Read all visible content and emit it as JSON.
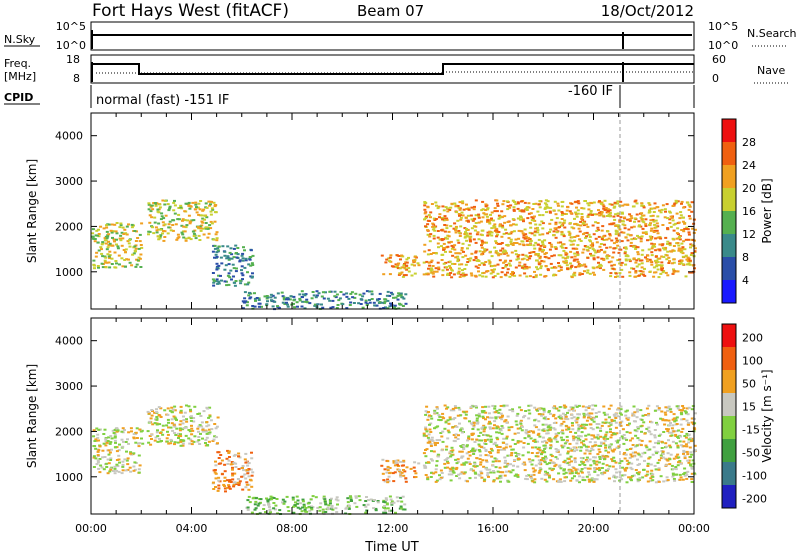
{
  "header": {
    "title": "Fort Hays West (fitACF)",
    "beam": "Beam 07",
    "date": "18/Oct/2012"
  },
  "meta_panels": {
    "nsky_label": "N.Sky",
    "nsearch_label": "N.Search",
    "freq_label": "Freq.",
    "freq_unit": "[MHz]",
    "nave_label": "Nave",
    "cpid_label": "CPID",
    "cpid_text_1": "normal (fast) -151 IF",
    "cpid_text_2": "-160 IF",
    "noise_ticks_left": [
      "10^5",
      "10^0"
    ],
    "noise_ticks_right": [
      "10^5",
      "10^0"
    ],
    "freq_ticks": [
      "18",
      "8"
    ],
    "nave_ticks": [
      "60",
      "0"
    ]
  },
  "chart_data": [
    {
      "type": "heatmap",
      "name": "power",
      "ylabel": "Slant Range [km]",
      "ylim": [
        180,
        4500
      ],
      "xlim": [
        0,
        24
      ],
      "yticks": [
        "1000",
        "2000",
        "3000",
        "4000"
      ],
      "colorbar_label": "Power [dB]",
      "colorbar_ticks": [
        "4",
        "8",
        "12",
        "16",
        "20",
        "24",
        "28"
      ],
      "colors": [
        "#1a1aff",
        "#2a4ea8",
        "#3a8a8a",
        "#55b050",
        "#c8d030",
        "#f0a020",
        "#f06010",
        "#ee1010"
      ],
      "regions": [
        {
          "t0": 0.0,
          "t1": 2.0,
          "r0": 1100,
          "r1": 2100,
          "level": 4
        },
        {
          "t0": 2.2,
          "t1": 5.0,
          "r0": 1700,
          "r1": 2600,
          "level": 4
        },
        {
          "t0": 4.8,
          "t1": 6.4,
          "r0": 700,
          "r1": 1600,
          "level": 2
        },
        {
          "t0": 6.0,
          "t1": 12.5,
          "r0": 200,
          "r1": 600,
          "level": 2
        },
        {
          "t0": 11.5,
          "t1": 13.0,
          "r0": 900,
          "r1": 1400,
          "level": 5
        },
        {
          "t0": 13.2,
          "t1": 24.0,
          "r0": 900,
          "r1": 2600,
          "level": 5
        }
      ]
    },
    {
      "type": "heatmap",
      "name": "velocity",
      "ylabel": "Slant Range [km]",
      "ylim": [
        180,
        4500
      ],
      "xlim": [
        0,
        24
      ],
      "xticks": [
        "00:00",
        "04:00",
        "08:00",
        "12:00",
        "16:00",
        "20:00",
        "00:00"
      ],
      "xlabel": "Time UT",
      "yticks": [
        "1000",
        "2000",
        "3000",
        "4000"
      ],
      "colorbar_label": "Velocity [m s⁻¹]",
      "colorbar_ticks": [
        "200",
        "100",
        "50",
        "15",
        "-15",
        "-50",
        "-100",
        "-200"
      ],
      "colors": [
        "#2020c0",
        "#3a7a8a",
        "#40a040",
        "#80d040",
        "#c8c8c0",
        "#f0a020",
        "#f06010",
        "#ee1010"
      ],
      "regions": [
        {
          "t0": 0.0,
          "t1": 2.0,
          "r0": 1100,
          "r1": 2100,
          "level": 4
        },
        {
          "t0": 2.2,
          "t1": 5.0,
          "r0": 1700,
          "r1": 2600,
          "level": 4
        },
        {
          "t0": 4.8,
          "t1": 6.4,
          "r0": 700,
          "r1": 1600,
          "level": 5
        },
        {
          "t0": 6.0,
          "t1": 12.5,
          "r0": 200,
          "r1": 600,
          "level": 3
        },
        {
          "t0": 11.5,
          "t1": 13.0,
          "r0": 900,
          "r1": 1400,
          "level": 5
        },
        {
          "t0": 13.2,
          "t1": 24.0,
          "r0": 900,
          "r1": 2600,
          "level": 4
        }
      ]
    }
  ]
}
